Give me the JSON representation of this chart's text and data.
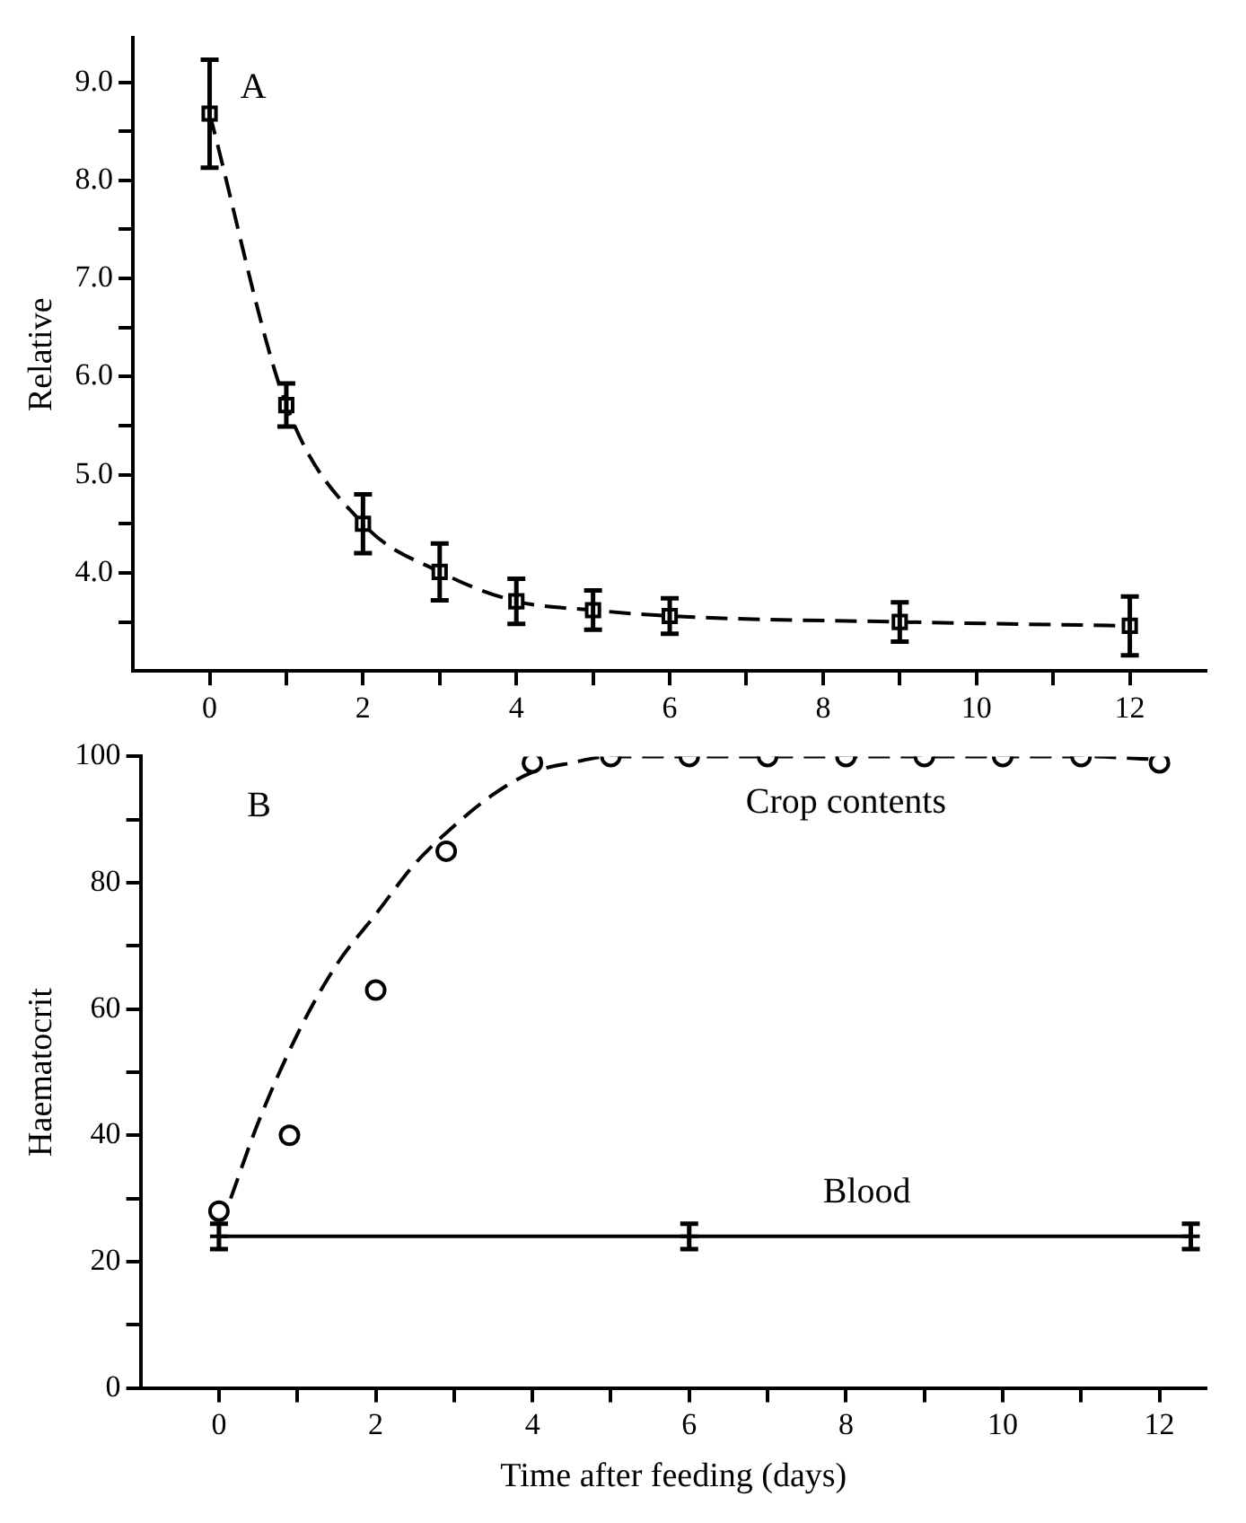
{
  "chart_data": [
    {
      "type": "line",
      "ylabel": "Relative",
      "annotations": [
        "A"
      ],
      "xlim": [
        -1,
        13
      ],
      "ylim": [
        3.0,
        9.45
      ],
      "xticks": [
        0,
        {
          "value": 1,
          "label": null
        },
        2,
        {
          "value": 3,
          "label": null
        },
        4,
        {
          "value": 5,
          "label": null
        },
        6,
        {
          "value": 7,
          "label": null
        },
        8,
        {
          "value": 9,
          "label": null
        },
        10,
        {
          "value": 11,
          "label": null
        },
        12
      ],
      "yticks": [
        {
          "value": 3.5,
          "label": null
        },
        {
          "value": 4,
          "label": "4.0"
        },
        {
          "value": 4.5,
          "label": null
        },
        {
          "value": 5,
          "label": "5.0"
        },
        {
          "value": 5.5,
          "label": null
        },
        {
          "value": 6,
          "label": "6.0"
        },
        {
          "value": 6.5,
          "label": null
        },
        {
          "value": 7,
          "label": "7.0"
        },
        {
          "value": 7.5,
          "label": null
        },
        {
          "value": 8,
          "label": "8.0"
        },
        {
          "value": 8.5,
          "label": null
        },
        {
          "value": 9,
          "label": "9.0"
        }
      ],
      "grid": false,
      "legend": false,
      "series": [
        {
          "color": "#000000",
          "marker": "square",
          "line_style": "dashed",
          "x": [
            0,
            1,
            2,
            3,
            4,
            5,
            6,
            9,
            12
          ],
          "values": [
            8.68,
            5.71,
            4.5,
            4.01,
            3.71,
            3.62,
            3.56,
            3.5,
            3.46
          ],
          "errors": [
            0.55,
            0.22,
            0.3,
            0.29,
            0.23,
            0.2,
            0.18,
            0.2,
            0.3
          ]
        }
      ]
    },
    {
      "type": "line",
      "ylabel": "Haematocrit",
      "xlabel": "Time after feeding (days)",
      "annotations": [
        "B"
      ],
      "xlim": [
        -1,
        12.6
      ],
      "ylim": [
        0,
        100
      ],
      "xticks": [
        0,
        {
          "value": 1,
          "label": null
        },
        2,
        {
          "value": 3,
          "label": null
        },
        4,
        {
          "value": 5,
          "label": null
        },
        6,
        {
          "value": 7,
          "label": null
        },
        8,
        {
          "value": 9,
          "label": null
        },
        10,
        {
          "value": 11,
          "label": null
        },
        12
      ],
      "yticks": [
        0,
        {
          "value": 10,
          "label": null
        },
        20,
        {
          "value": 30,
          "label": null
        },
        40,
        {
          "value": 50,
          "label": null
        },
        60,
        {
          "value": 70,
          "label": null
        },
        80,
        {
          "value": 90,
          "label": null
        },
        100
      ],
      "grid": false,
      "legend": false,
      "series": [
        {
          "type": "scatter",
          "name": "Crop contents",
          "color": "#000000",
          "marker": "circle",
          "x": [
            0,
            0.9,
            2,
            2.9,
            4,
            5,
            6,
            7,
            8,
            9,
            10,
            11,
            12
          ],
          "values": [
            28,
            40,
            63,
            85,
            99,
            100,
            100,
            100,
            100,
            100,
            100,
            100,
            99
          ]
        },
        {
          "color": "#000000",
          "marker": "none",
          "line_style": "dashed",
          "x": [
            0.15,
            0.5,
            1,
            1.5,
            2,
            2.5,
            3,
            3.5,
            4,
            4.5,
            5,
            6,
            7,
            8,
            9,
            10,
            11,
            12
          ],
          "values": [
            30,
            42,
            56,
            67,
            75,
            83,
            89,
            94,
            97.5,
            99,
            100,
            100,
            100,
            100,
            100,
            100,
            100,
            99.5
          ]
        },
        {
          "name": "Blood",
          "color": "#000000",
          "marker": "cross",
          "line_style": "solid",
          "x": [
            0,
            6,
            12.4
          ],
          "values": [
            24,
            24,
            24
          ],
          "errors": [
            2,
            2,
            2
          ]
        }
      ]
    }
  ]
}
